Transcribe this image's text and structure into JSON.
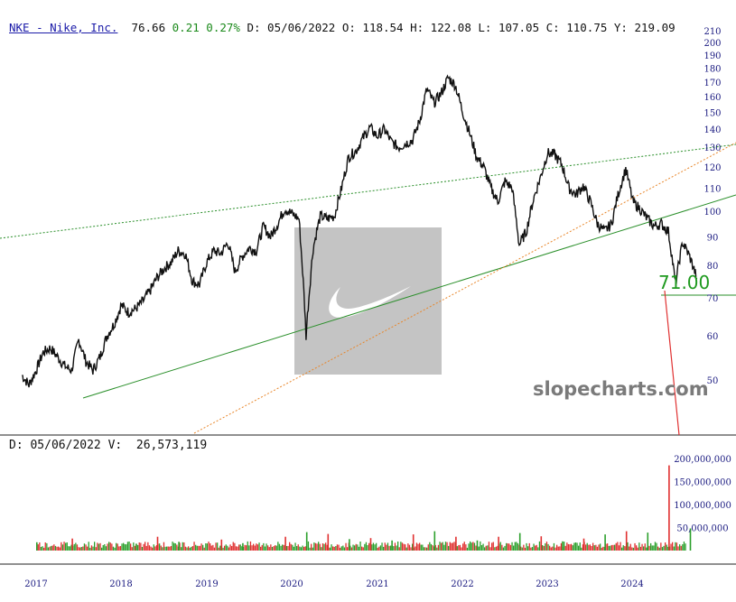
{
  "header": {
    "ticker": "NKE - Nike, Inc.",
    "last": "76.66",
    "change": "0.21",
    "change_pct": "0.27%",
    "date": "D: 05/06/2022",
    "open": "O: 118.54",
    "high": "H: 122.08",
    "low": "L: 107.05",
    "close": "C: 110.75",
    "y": "Y: 219.09"
  },
  "volume_header": {
    "date": "D: 05/06/2022",
    "volume": "V:  26,573,119"
  },
  "watermark": "slopecharts.com",
  "price_label": "71.00",
  "colors": {
    "price": "#111111",
    "up_volume": "#2ca02c",
    "down_volume": "#e03030",
    "trend_green": "#2a8f2a",
    "trend_orange": "#e8862a",
    "projection_red": "#e03030",
    "axis_text": "#1a1a80",
    "logo_box": "#c4c4c4"
  },
  "logo": {
    "name": "nike-swoosh-icon"
  },
  "chart_data": [
    {
      "type": "line",
      "title": "",
      "scale": "log",
      "ylim": [
        40,
        212
      ],
      "y_ticks": [
        50,
        60,
        70,
        80,
        90,
        100,
        110,
        120,
        130,
        140,
        150,
        160,
        170,
        180,
        190,
        200,
        210
      ],
      "x_ticks": [
        "2017",
        "2018",
        "2019",
        "2020",
        "2021",
        "2022",
        "2023",
        "2024"
      ],
      "series": [
        {
          "dates": [
            "2016-11",
            "2016-12",
            "2017-01",
            "2017-02",
            "2017-03",
            "2017-04",
            "2017-05",
            "2017-06",
            "2017-07",
            "2017-08",
            "2017-09",
            "2017-10",
            "2017-11",
            "2017-12",
            "2018-01",
            "2018-02",
            "2018-03",
            "2018-04",
            "2018-05",
            "2018-06",
            "2018-07",
            "2018-08",
            "2018-09",
            "2018-10",
            "2018-11",
            "2018-12",
            "2019-01",
            "2019-02",
            "2019-03",
            "2019-04",
            "2019-05",
            "2019-06",
            "2019-07",
            "2019-08",
            "2019-09",
            "2019-10",
            "2019-11",
            "2019-12",
            "2020-01",
            "2020-02",
            "2020-03",
            "2020-04",
            "2020-05",
            "2020-06",
            "2020-07",
            "2020-08",
            "2020-09",
            "2020-10",
            "2020-11",
            "2020-12",
            "2021-01",
            "2021-02",
            "2021-03",
            "2021-04",
            "2021-05",
            "2021-06",
            "2021-07",
            "2021-08",
            "2021-09",
            "2021-10",
            "2021-11",
            "2021-12",
            "2022-01",
            "2022-02",
            "2022-03",
            "2022-04",
            "2022-05",
            "2022-06",
            "2022-07",
            "2022-08",
            "2022-09",
            "2022-10",
            "2022-11",
            "2022-12",
            "2023-01",
            "2023-02",
            "2023-03",
            "2023-04",
            "2023-05",
            "2023-06",
            "2023-07",
            "2023-08",
            "2023-09",
            "2023-10",
            "2023-11",
            "2023-12",
            "2024-01",
            "2024-02",
            "2024-03",
            "2024-04",
            "2024-05",
            "2024-06",
            "2024-07",
            "2024-08",
            "2024-09",
            "2024-10"
          ],
          "values": [
            51,
            49,
            52,
            56,
            57,
            55,
            53,
            52,
            59,
            54,
            52,
            55,
            60,
            63,
            68,
            66,
            67,
            69,
            72,
            76,
            79,
            81,
            85,
            84,
            75,
            74,
            81,
            85,
            84,
            88,
            78,
            83,
            86,
            85,
            94,
            90,
            95,
            101,
            99,
            97,
            60,
            86,
            98,
            97,
            98,
            110,
            125,
            128,
            135,
            141,
            136,
            140,
            133,
            130,
            132,
            134,
            145,
            165,
            156,
            162,
            173,
            168,
            151,
            138,
            125,
            120,
            110,
            104,
            113,
            110,
            87,
            92,
            105,
            115,
            127,
            126,
            121,
            110,
            107,
            111,
            104,
            95,
            92,
            95,
            108,
            119,
            104,
            101,
            97,
            94,
            95,
            92,
            74,
            88,
            83,
            76
          ]
        }
      ]
    },
    {
      "type": "bar",
      "title": "",
      "ylim": [
        0,
        220000000
      ],
      "y_ticks": [
        "50,000,000",
        "100,000,000",
        "150,000,000",
        "200,000,000"
      ],
      "series": [
        {
          "name": "",
          "dates": [
            "2017-01",
            "2017-06",
            "2018-03",
            "2018-06",
            "2018-09",
            "2019-03",
            "2019-06",
            "2019-12",
            "2020-03",
            "2020-06",
            "2020-09",
            "2020-12",
            "2021-03",
            "2021-06",
            "2021-09",
            "2021-12",
            "2022-03",
            "2022-06",
            "2022-09",
            "2022-12",
            "2023-03",
            "2023-06",
            "2023-09",
            "2023-12",
            "2024-03",
            "2024-06",
            "2024-09"
          ],
          "values": [
            18000000,
            26000000,
            15000000,
            30000000,
            19000000,
            24000000,
            16000000,
            30000000,
            40000000,
            36000000,
            25000000,
            27000000,
            22000000,
            35000000,
            42000000,
            30000000,
            22000000,
            30000000,
            38000000,
            31000000,
            20000000,
            26000000,
            35000000,
            42000000,
            39000000,
            185000000,
            48000000
          ]
        }
      ]
    }
  ]
}
